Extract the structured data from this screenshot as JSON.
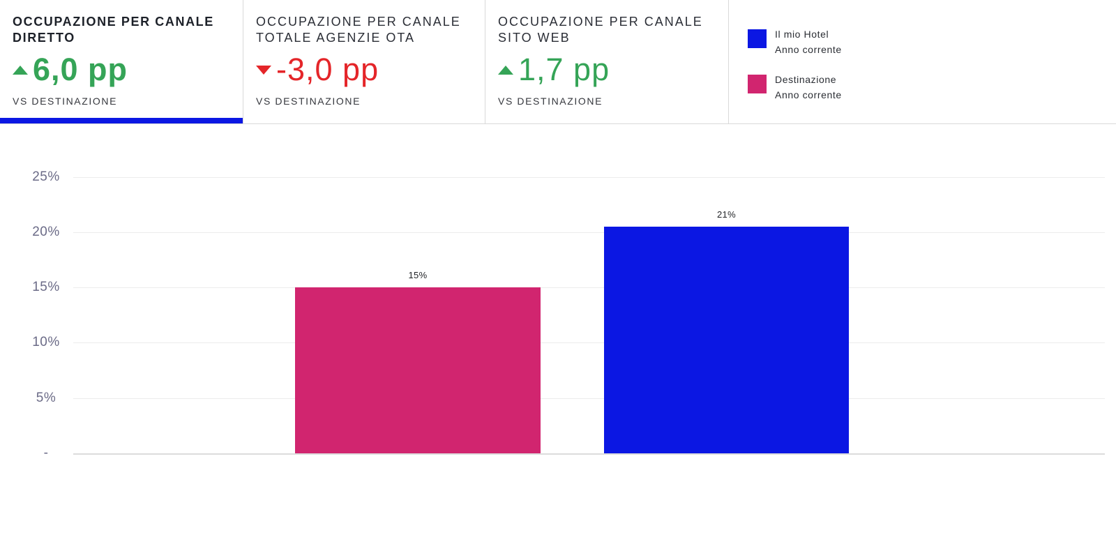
{
  "colors": {
    "blue": "#0b17e3",
    "magenta": "#d1256f",
    "green": "#35a457",
    "red": "#e42529"
  },
  "tabs": [
    {
      "id": "canale-diretto",
      "title_lines": [
        "OCCUPAZIONE PER CANALE",
        "DIRETTO"
      ],
      "delta": "6,0 pp",
      "direction": "up",
      "trend_color": "green",
      "compare_label": "VS DESTINAZIONE",
      "active": true
    },
    {
      "id": "canale-totale-agenzie-ota",
      "title_lines": [
        "OCCUPAZIONE PER CANALE",
        "TOTALE AGENZIE OTA"
      ],
      "delta": "-3,0 pp",
      "direction": "down",
      "trend_color": "red",
      "compare_label": "VS DESTINAZIONE",
      "active": false
    },
    {
      "id": "canale-sito-web",
      "title_lines": [
        "OCCUPAZIONE PER CANALE",
        "SITO WEB"
      ],
      "delta": "1,7 pp",
      "direction": "up",
      "trend_color": "green",
      "compare_label": "VS DESTINAZIONE",
      "active": false
    }
  ],
  "legend": {
    "items": [
      {
        "id": "il-mio-hotel",
        "label": "Il mio Hotel",
        "sublabel": "Anno corrente",
        "color": "#0b17e3"
      },
      {
        "id": "destinazione",
        "label": "Destinazione",
        "sublabel": "Anno corrente",
        "color": "#d1256f"
      }
    ]
  },
  "chart_data": {
    "type": "bar",
    "title": "",
    "categories": [
      "Destinazione Anno corrente",
      "Il mio Hotel Anno corrente"
    ],
    "series": [
      {
        "id": "destinazione-anno-corrente",
        "name": "Destinazione Anno corrente",
        "value": 15,
        "label": "15%",
        "color": "#d1256f"
      },
      {
        "id": "il-mio-hotel-anno-corrente",
        "name": "Il mio Hotel Anno corrente",
        "value": 20.5,
        "label": "21%",
        "color": "#0b17e3"
      }
    ],
    "xlabel": "",
    "ylabel": "",
    "ylim": [
      0,
      25
    ],
    "yticks": [
      {
        "value": 25,
        "label": "25%"
      },
      {
        "value": 20,
        "label": "20%"
      },
      {
        "value": 15,
        "label": "15%"
      },
      {
        "value": 10,
        "label": "10%"
      },
      {
        "value": 5,
        "label": "5%"
      },
      {
        "value": 0,
        "label": "-"
      }
    ],
    "grid": true,
    "legend_position": "top-right"
  }
}
